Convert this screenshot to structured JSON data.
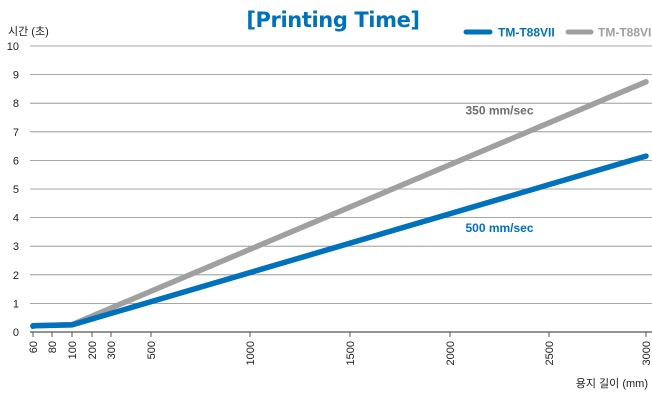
{
  "chart_data": {
    "type": "line",
    "title": "[Printing Time]",
    "xlabel": "용지 길이 (mm)",
    "ylabel": "시간 (초)",
    "x_ticks": [
      60,
      80,
      100,
      200,
      300,
      500,
      1000,
      1500,
      2000,
      2500,
      3000
    ],
    "x_tick_labels": [
      "60",
      "80",
      "100",
      "200",
      "300",
      "500",
      "1000",
      "1500",
      "2000",
      "2500",
      "3000"
    ],
    "y_ticks": [
      0,
      1,
      2,
      3,
      4,
      5,
      6,
      7,
      8,
      9,
      10
    ],
    "y_tick_labels": [
      "0",
      "1",
      "2",
      "3",
      "4",
      "5",
      "6",
      "7",
      "8",
      "9",
      "10"
    ],
    "xlim": [
      0,
      3000
    ],
    "ylim": [
      0,
      10
    ],
    "grid": "horizontal",
    "legend_position": "top-right",
    "series": [
      {
        "name": "TM-T88VII",
        "color": "#0071bb",
        "points": [
          [
            0,
            0.2
          ],
          [
            60,
            0.22
          ],
          [
            100,
            0.25
          ],
          [
            3000,
            6.15
          ]
        ]
      },
      {
        "name": "TM-T88VI",
        "color": "#a0a0a0",
        "points": [
          [
            0,
            0.2
          ],
          [
            60,
            0.22
          ],
          [
            100,
            0.26
          ],
          [
            3000,
            8.75
          ]
        ]
      }
    ],
    "annotations": [
      {
        "text": "350 mm/sec",
        "series": "TM-T88VI",
        "color": "#6e6e6e",
        "x": 2250,
        "y": 7.6
      },
      {
        "text": "500 mm/sec",
        "series": "TM-T88VII",
        "color": "#0071bb",
        "x": 2250,
        "y": 3.5
      }
    ],
    "title_color": "#0071bb"
  }
}
